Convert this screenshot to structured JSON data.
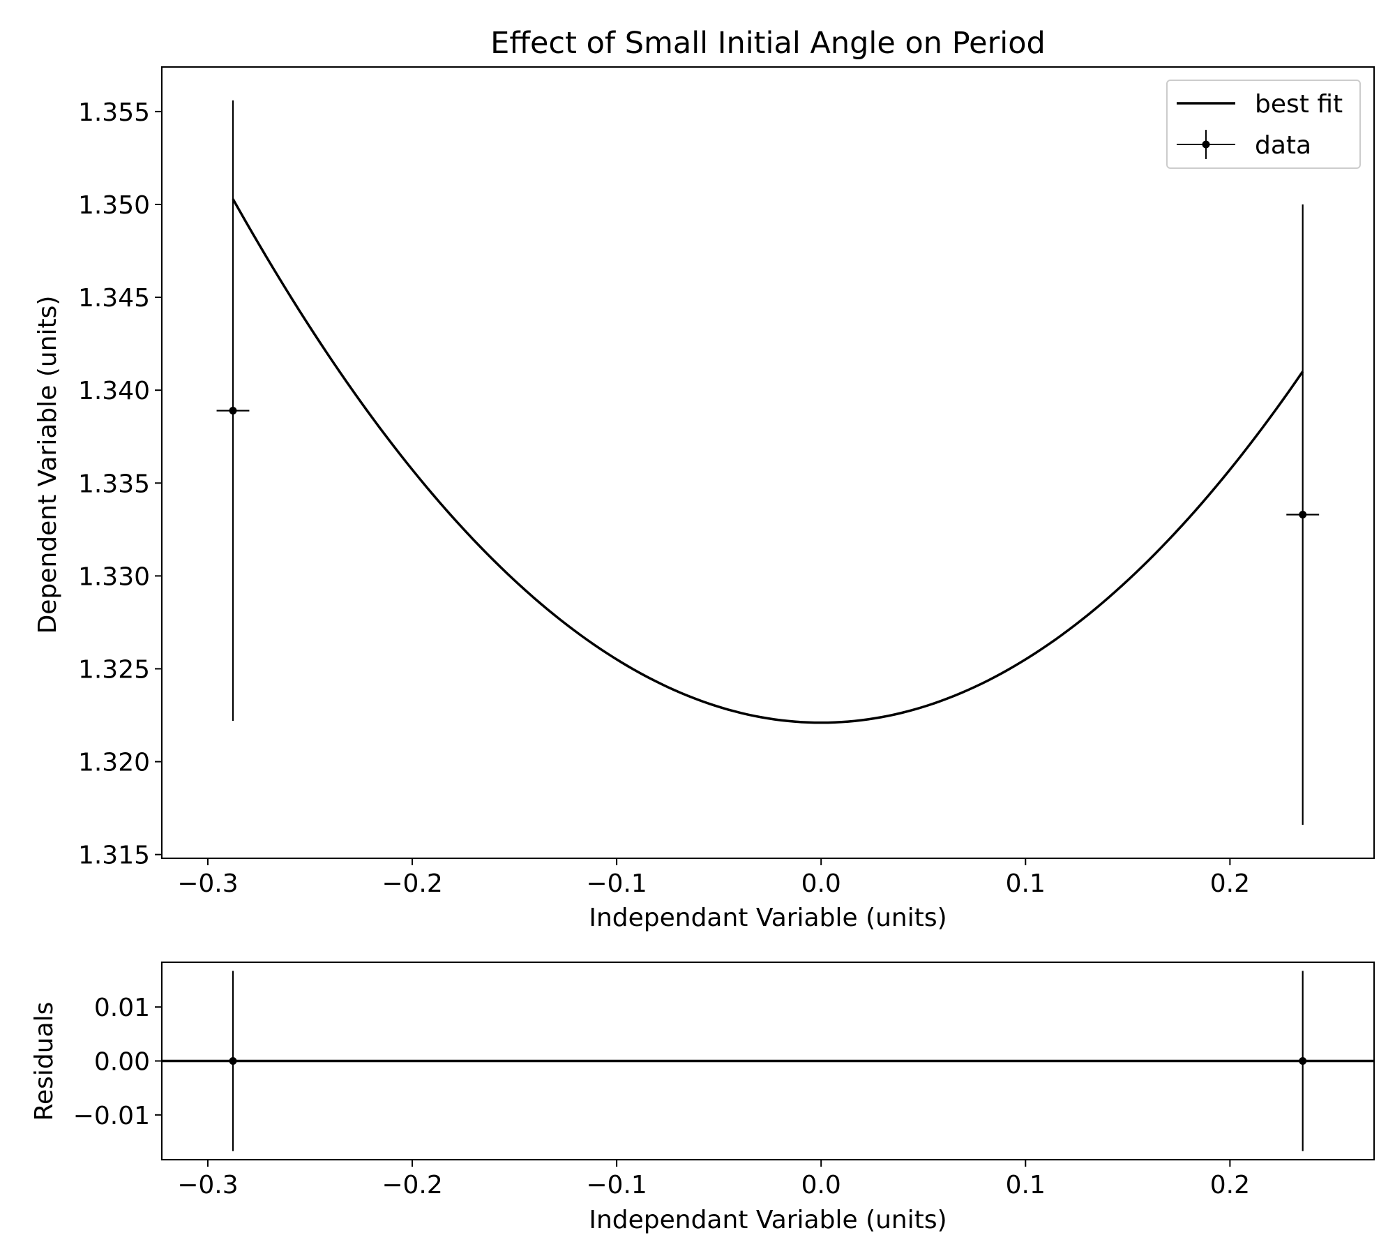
{
  "chart_data": [
    {
      "type": "scatter",
      "title": "Effect of Small Initial Angle on Period",
      "xlabel": "Independant Variable (units)",
      "ylabel": "Dependent Variable (units)",
      "xlim": [
        -0.3225,
        0.2705
      ],
      "ylim": [
        1.3148,
        1.3574
      ],
      "xticks": [
        -0.3,
        -0.2,
        -0.1,
        0.0,
        0.1,
        0.2
      ],
      "xtick_labels": [
        "−0.3",
        "−0.2",
        "−0.1",
        "0.0",
        "0.1",
        "0.2"
      ],
      "yticks": [
        1.315,
        1.32,
        1.325,
        1.33,
        1.335,
        1.34,
        1.345,
        1.35,
        1.355
      ],
      "ytick_labels": [
        "1.315",
        "1.320",
        "1.325",
        "1.330",
        "1.335",
        "1.340",
        "1.345",
        "1.350",
        "1.355"
      ],
      "grid": false,
      "legend_position": "top-right",
      "series": [
        {
          "name": "best fit",
          "kind": "line",
          "color": "#000000",
          "model": "quadratic",
          "coefficients": {
            "a": 0.3406,
            "b": 0.0,
            "c": 1.3221
          },
          "x_range": [
            -0.2877,
            0.2356
          ]
        },
        {
          "name": "data",
          "kind": "errorbar",
          "color": "#000000",
          "points": [
            {
              "x": -0.2877,
              "y": 1.3389,
              "xerr": 0.008,
              "yerr": 0.0167
            },
            {
              "x": 0.2356,
              "y": 1.3333,
              "xerr": 0.008,
              "yerr": 0.0167
            }
          ]
        }
      ]
    },
    {
      "type": "scatter",
      "title": "",
      "xlabel": "Independant Variable (units)",
      "ylabel": "Residuals",
      "xlim": [
        -0.3225,
        0.2705
      ],
      "ylim": [
        -0.0183,
        0.0183
      ],
      "xticks": [
        -0.3,
        -0.2,
        -0.1,
        0.0,
        0.1,
        0.2
      ],
      "xtick_labels": [
        "−0.3",
        "−0.2",
        "−0.1",
        "0.0",
        "0.1",
        "0.2"
      ],
      "yticks": [
        -0.01,
        0.0,
        0.01
      ],
      "ytick_labels": [
        "−0.01",
        "0.00",
        "0.01"
      ],
      "grid": false,
      "zero_line": true,
      "series": [
        {
          "kind": "errorbar",
          "color": "#000000",
          "points": [
            {
              "x": -0.2877,
              "y": 0.0,
              "yerr": 0.0167
            },
            {
              "x": 0.2356,
              "y": 0.0,
              "yerr": 0.0167
            }
          ]
        }
      ]
    }
  ]
}
